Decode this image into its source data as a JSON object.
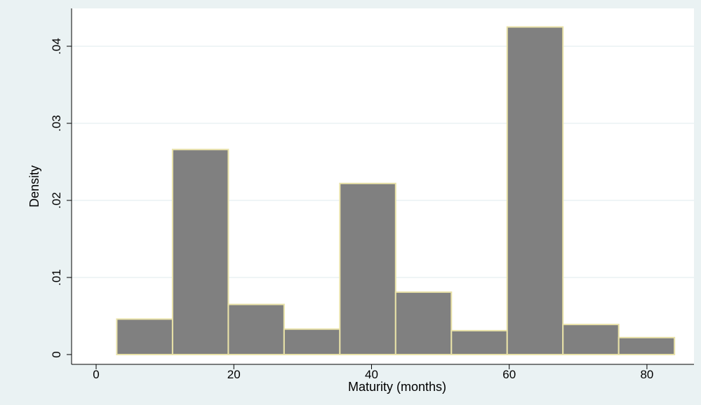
{
  "chart_data": {
    "type": "bar",
    "subtype": "histogram",
    "xlabel": "Maturity (months)",
    "ylabel": "Density",
    "xlim": [
      0,
      85
    ],
    "ylim": [
      0,
      0.0443
    ],
    "x_ticks": [
      0,
      20,
      40,
      60,
      80
    ],
    "x_tick_labels": [
      "0",
      "20",
      "40",
      "60",
      "80"
    ],
    "y_ticks": [
      0,
      0.01,
      0.02,
      0.03,
      0.04
    ],
    "y_tick_labels": [
      "0",
      ".01",
      ".02",
      ".03",
      ".04"
    ],
    "grid": "horizontal",
    "bin_width": 8.1,
    "bins": [
      {
        "x0": 3.0,
        "x1": 11.1,
        "value": 0.0046
      },
      {
        "x0": 11.1,
        "x1": 19.2,
        "value": 0.0266
      },
      {
        "x0": 19.2,
        "x1": 27.3,
        "value": 0.0065
      },
      {
        "x0": 27.3,
        "x1": 35.4,
        "value": 0.0033
      },
      {
        "x0": 35.4,
        "x1": 43.5,
        "value": 0.0222
      },
      {
        "x0": 43.5,
        "x1": 51.6,
        "value": 0.0081
      },
      {
        "x0": 51.6,
        "x1": 59.7,
        "value": 0.0031
      },
      {
        "x0": 59.7,
        "x1": 67.8,
        "value": 0.0425
      },
      {
        "x0": 67.8,
        "x1": 75.9,
        "value": 0.0039
      },
      {
        "x0": 75.9,
        "x1": 84.0,
        "value": 0.0022
      }
    ],
    "colors": {
      "bar_fill": "#808080",
      "bar_edge": "#e9e2a8",
      "plot_bg": "#ffffff",
      "outer_bg": "#eaf2f3",
      "grid": "#eaf2f3"
    }
  }
}
